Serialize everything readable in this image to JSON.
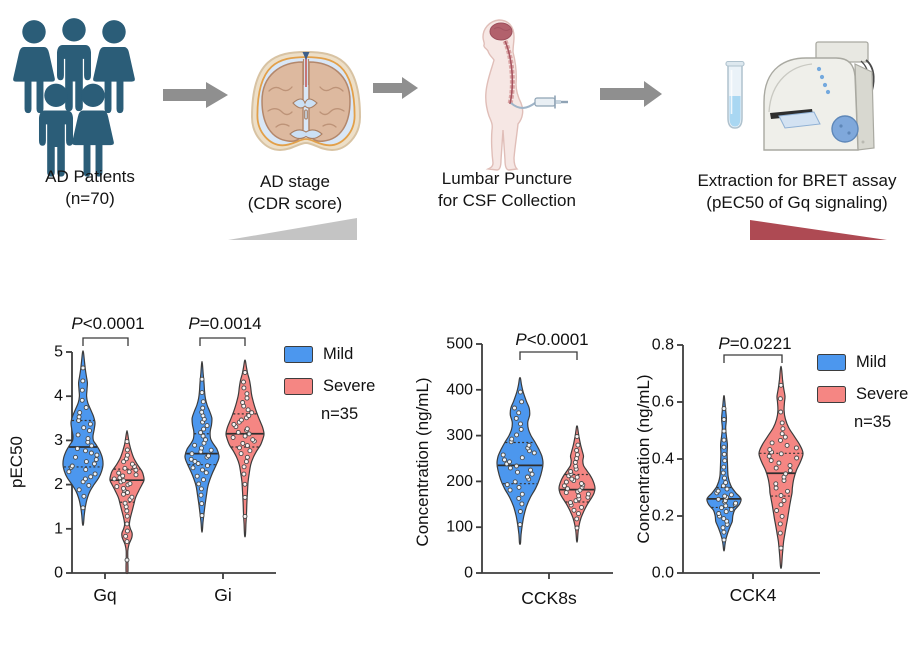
{
  "workflow": {
    "steps": [
      {
        "line1": "AD Patients",
        "line2": "(n=70)"
      },
      {
        "line1": "AD stage",
        "line2": "(CDR score)"
      },
      {
        "line1": "Lumbar Puncture",
        "line2": "for CSF Collection"
      },
      {
        "line1": "Extraction for BRET assay",
        "line2": "(pEC50 of Gq signaling)"
      }
    ]
  },
  "legend": {
    "mild": "Mild",
    "severe": "Severe",
    "n_label": "n=35"
  },
  "colors": {
    "mild": "#4C97EE",
    "severe": "#F58683",
    "violin_outline": "#3C3C3C",
    "axis": "#3D3D3D",
    "text": "#111111",
    "people": "#2B5D78",
    "arrow": "#8F8F8F",
    "wedge_gray": "#C4C4C4",
    "wedge_red": "#AE4A53"
  },
  "chart_data": [
    {
      "type": "violin",
      "title": "",
      "ylabel": "pEC50",
      "ylim": [
        0,
        5
      ],
      "yticks": [
        0,
        1,
        2,
        3,
        4,
        5
      ],
      "ytick_labels": [
        "0",
        "1",
        "2",
        "3",
        "4",
        "5"
      ],
      "categories": [
        "Gq",
        "Gi"
      ],
      "annotations": [
        {
          "text": "P<0.0001"
        },
        {
          "text": "P=0.0014"
        }
      ],
      "series": [
        {
          "category": "Gq",
          "group": "Mild",
          "color_key": "mild",
          "n": 35,
          "stats": {
            "min": 1.1,
            "q1": 2.4,
            "median": 2.85,
            "q3": 3.45,
            "max": 5.0
          },
          "profile": [
            [
              1.1,
              0.02
            ],
            [
              1.3,
              0.06
            ],
            [
              1.5,
              0.12
            ],
            [
              1.7,
              0.22
            ],
            [
              1.85,
              0.35
            ],
            [
              2.0,
              0.55
            ],
            [
              2.15,
              0.78
            ],
            [
              2.3,
              0.93
            ],
            [
              2.45,
              1.0
            ],
            [
              2.6,
              0.97
            ],
            [
              2.75,
              0.85
            ],
            [
              2.9,
              0.66
            ],
            [
              3.0,
              0.52
            ],
            [
              3.1,
              0.5
            ],
            [
              3.25,
              0.56
            ],
            [
              3.4,
              0.6
            ],
            [
              3.55,
              0.52
            ],
            [
              3.7,
              0.38
            ],
            [
              3.85,
              0.24
            ],
            [
              4.0,
              0.18
            ],
            [
              4.15,
              0.2
            ],
            [
              4.3,
              0.22
            ],
            [
              4.45,
              0.17
            ],
            [
              4.6,
              0.12
            ],
            [
              4.8,
              0.07
            ],
            [
              5.0,
              0.02
            ]
          ]
        },
        {
          "category": "Gq",
          "group": "Severe",
          "color_key": "severe",
          "n": 35,
          "stats": {
            "min": 0.0,
            "q1": 1.6,
            "median": 2.1,
            "q3": 2.35,
            "max": 3.2
          },
          "profile": [
            [
              0.0,
              0.04
            ],
            [
              0.1,
              0.06
            ],
            [
              0.3,
              0.05
            ],
            [
              0.5,
              0.05
            ],
            [
              0.65,
              0.12
            ],
            [
              0.8,
              0.28
            ],
            [
              0.9,
              0.3
            ],
            [
              1.0,
              0.2
            ],
            [
              1.1,
              0.14
            ],
            [
              1.25,
              0.2
            ],
            [
              1.4,
              0.3
            ],
            [
              1.55,
              0.4
            ],
            [
              1.7,
              0.5
            ],
            [
              1.85,
              0.68
            ],
            [
              2.0,
              0.88
            ],
            [
              2.1,
              1.0
            ],
            [
              2.2,
              0.97
            ],
            [
              2.3,
              0.88
            ],
            [
              2.45,
              0.62
            ],
            [
              2.6,
              0.4
            ],
            [
              2.75,
              0.26
            ],
            [
              2.9,
              0.15
            ],
            [
              3.05,
              0.08
            ],
            [
              3.2,
              0.02
            ]
          ]
        },
        {
          "category": "Gi",
          "group": "Mild",
          "color_key": "mild",
          "n": 35,
          "stats": {
            "min": 0.95,
            "q1": 2.45,
            "median": 2.7,
            "q3": 3.15,
            "max": 4.75
          },
          "profile": [
            [
              0.95,
              0.02
            ],
            [
              1.15,
              0.06
            ],
            [
              1.35,
              0.12
            ],
            [
              1.55,
              0.18
            ],
            [
              1.75,
              0.26
            ],
            [
              1.95,
              0.34
            ],
            [
              2.1,
              0.45
            ],
            [
              2.25,
              0.6
            ],
            [
              2.4,
              0.78
            ],
            [
              2.55,
              0.95
            ],
            [
              2.65,
              1.0
            ],
            [
              2.8,
              0.88
            ],
            [
              2.95,
              0.62
            ],
            [
              3.05,
              0.5
            ],
            [
              3.2,
              0.48
            ],
            [
              3.35,
              0.56
            ],
            [
              3.5,
              0.58
            ],
            [
              3.65,
              0.46
            ],
            [
              3.8,
              0.3
            ],
            [
              3.95,
              0.2
            ],
            [
              4.1,
              0.15
            ],
            [
              4.3,
              0.12
            ],
            [
              4.5,
              0.07
            ],
            [
              4.75,
              0.02
            ]
          ]
        },
        {
          "category": "Gi",
          "group": "Severe",
          "color_key": "severe",
          "n": 35,
          "stats": {
            "min": 0.85,
            "q1": 2.85,
            "median": 3.15,
            "q3": 3.6,
            "max": 4.8
          },
          "profile": [
            [
              0.85,
              0.02
            ],
            [
              1.1,
              0.05
            ],
            [
              1.35,
              0.08
            ],
            [
              1.6,
              0.1
            ],
            [
              1.85,
              0.13
            ],
            [
              2.05,
              0.16
            ],
            [
              2.25,
              0.22
            ],
            [
              2.45,
              0.3
            ],
            [
              2.6,
              0.42
            ],
            [
              2.75,
              0.6
            ],
            [
              2.9,
              0.82
            ],
            [
              3.05,
              0.95
            ],
            [
              3.15,
              1.0
            ],
            [
              3.3,
              0.92
            ],
            [
              3.45,
              0.78
            ],
            [
              3.6,
              0.64
            ],
            [
              3.75,
              0.52
            ],
            [
              3.9,
              0.42
            ],
            [
              4.05,
              0.34
            ],
            [
              4.2,
              0.3
            ],
            [
              4.35,
              0.24
            ],
            [
              4.5,
              0.15
            ],
            [
              4.65,
              0.08
            ],
            [
              4.8,
              0.02
            ]
          ]
        }
      ]
    },
    {
      "type": "violin",
      "title": "",
      "ylabel": "Concentration (ng/mL)",
      "ylim": [
        0,
        500
      ],
      "yticks": [
        0,
        100,
        200,
        300,
        400,
        500
      ],
      "ytick_labels": [
        "0",
        "100",
        "200",
        "300",
        "400",
        "500"
      ],
      "categories": [
        "CCK8s"
      ],
      "annotations": [
        {
          "text": "P<0.0001"
        }
      ],
      "series": [
        {
          "category": "CCK8s",
          "group": "Mild",
          "color_key": "mild",
          "n": 35,
          "stats": {
            "min": 65,
            "q1": 195,
            "median": 235,
            "q3": 285,
            "max": 425
          },
          "profile": [
            [
              65,
              0.02
            ],
            [
              85,
              0.05
            ],
            [
              105,
              0.1
            ],
            [
              125,
              0.17
            ],
            [
              145,
              0.28
            ],
            [
              165,
              0.45
            ],
            [
              185,
              0.68
            ],
            [
              205,
              0.85
            ],
            [
              225,
              0.96
            ],
            [
              240,
              1.0
            ],
            [
              255,
              0.95
            ],
            [
              270,
              0.82
            ],
            [
              285,
              0.66
            ],
            [
              300,
              0.48
            ],
            [
              315,
              0.36
            ],
            [
              330,
              0.34
            ],
            [
              345,
              0.42
            ],
            [
              360,
              0.4
            ],
            [
              375,
              0.28
            ],
            [
              395,
              0.14
            ],
            [
              410,
              0.07
            ],
            [
              425,
              0.02
            ]
          ]
        },
        {
          "category": "CCK8s",
          "group": "Severe",
          "color_key": "severe",
          "n": 35,
          "stats": {
            "min": 70,
            "q1": 155,
            "median": 182,
            "q3": 215,
            "max": 320
          },
          "profile": [
            [
              70,
              0.02
            ],
            [
              90,
              0.06
            ],
            [
              105,
              0.12
            ],
            [
              120,
              0.22
            ],
            [
              135,
              0.38
            ],
            [
              150,
              0.58
            ],
            [
              165,
              0.82
            ],
            [
              175,
              0.95
            ],
            [
              185,
              1.0
            ],
            [
              195,
              0.95
            ],
            [
              205,
              0.85
            ],
            [
              215,
              0.7
            ],
            [
              225,
              0.52
            ],
            [
              235,
              0.36
            ],
            [
              245,
              0.32
            ],
            [
              255,
              0.36
            ],
            [
              265,
              0.3
            ],
            [
              280,
              0.2
            ],
            [
              295,
              0.12
            ],
            [
              310,
              0.06
            ],
            [
              320,
              0.02
            ]
          ]
        }
      ]
    },
    {
      "type": "violin",
      "title": "",
      "ylabel": "Concentration (ng/mL)",
      "ylim": [
        0,
        0.8
      ],
      "yticks": [
        0,
        0.2,
        0.4,
        0.6,
        0.8
      ],
      "ytick_labels": [
        "0.0",
        "0.2",
        "0.4",
        "0.6",
        "0.8"
      ],
      "categories": [
        "CCK4"
      ],
      "annotations": [
        {
          "text": "P=0.0221"
        }
      ],
      "series": [
        {
          "category": "CCK4",
          "group": "Mild",
          "color_key": "mild",
          "n": 35,
          "stats": {
            "min": 0.08,
            "q1": 0.23,
            "median": 0.26,
            "q3": 0.3,
            "max": 0.62
          },
          "profile": [
            [
              0.08,
              0.02
            ],
            [
              0.1,
              0.06
            ],
            [
              0.12,
              0.12
            ],
            [
              0.14,
              0.22
            ],
            [
              0.16,
              0.34
            ],
            [
              0.18,
              0.48
            ],
            [
              0.2,
              0.52
            ],
            [
              0.22,
              0.62
            ],
            [
              0.24,
              0.9
            ],
            [
              0.26,
              1.0
            ],
            [
              0.28,
              0.72
            ],
            [
              0.3,
              0.46
            ],
            [
              0.32,
              0.32
            ],
            [
              0.34,
              0.24
            ],
            [
              0.36,
              0.22
            ],
            [
              0.39,
              0.2
            ],
            [
              0.42,
              0.18
            ],
            [
              0.45,
              0.2
            ],
            [
              0.48,
              0.14
            ],
            [
              0.51,
              0.1
            ],
            [
              0.54,
              0.14
            ],
            [
              0.57,
              0.1
            ],
            [
              0.6,
              0.05
            ],
            [
              0.62,
              0.02
            ]
          ]
        },
        {
          "category": "CCK4",
          "group": "Severe",
          "color_key": "severe",
          "n": 35,
          "stats": {
            "min": 0.02,
            "q1": 0.27,
            "median": 0.35,
            "q3": 0.42,
            "max": 0.72
          },
          "profile": [
            [
              0.02,
              0.02
            ],
            [
              0.05,
              0.05
            ],
            [
              0.08,
              0.08
            ],
            [
              0.11,
              0.12
            ],
            [
              0.14,
              0.18
            ],
            [
              0.17,
              0.25
            ],
            [
              0.2,
              0.32
            ],
            [
              0.23,
              0.38
            ],
            [
              0.26,
              0.45
            ],
            [
              0.28,
              0.5
            ],
            [
              0.3,
              0.52
            ],
            [
              0.33,
              0.58
            ],
            [
              0.36,
              0.7
            ],
            [
              0.39,
              0.88
            ],
            [
              0.42,
              1.0
            ],
            [
              0.45,
              0.85
            ],
            [
              0.48,
              0.6
            ],
            [
              0.51,
              0.35
            ],
            [
              0.54,
              0.2
            ],
            [
              0.57,
              0.14
            ],
            [
              0.6,
              0.16
            ],
            [
              0.62,
              0.18
            ],
            [
              0.65,
              0.12
            ],
            [
              0.68,
              0.07
            ],
            [
              0.72,
              0.02
            ]
          ]
        }
      ]
    }
  ]
}
